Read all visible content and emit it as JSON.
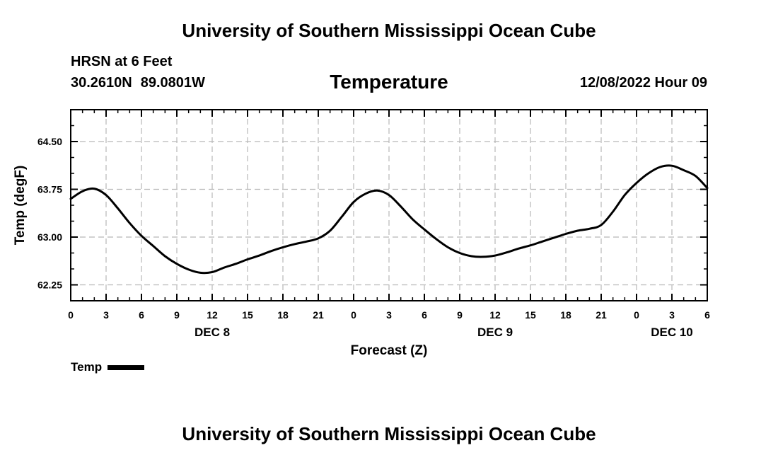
{
  "header": {
    "title": "University of Southern Mississippi Ocean Cube",
    "station": "HRSN at 6 Feet",
    "lat": "30.2610N",
    "lon": "89.0801W",
    "chart_title": "Temperature",
    "timestamp": "12/08/2022 Hour 09"
  },
  "footer": {
    "title": "University of Southern Mississippi Ocean Cube"
  },
  "legend": {
    "label": "Temp",
    "color": "#000000"
  },
  "chart_data": {
    "type": "line",
    "title": "Temperature",
    "xlabel": "Forecast (Z)",
    "ylabel": "Temp (degF)",
    "x_unit": "hours from DEC 8 00Z",
    "xlim": [
      0,
      54
    ],
    "ylim": [
      62.0,
      65.0
    ],
    "y_ticks": [
      62.25,
      63.0,
      63.75,
      64.5
    ],
    "y_tick_labels": [
      "62.25",
      "63.00",
      "63.75",
      "64.50"
    ],
    "x_ticks": [
      0,
      3,
      6,
      9,
      12,
      15,
      18,
      21,
      24,
      27,
      30,
      33,
      36,
      39,
      42,
      45,
      48,
      51,
      54
    ],
    "x_tick_labels": [
      "0",
      "3",
      "6",
      "9",
      "12",
      "15",
      "18",
      "21",
      "0",
      "3",
      "6",
      "9",
      "12",
      "15",
      "18",
      "21",
      "0",
      "3",
      "6"
    ],
    "date_labels": [
      {
        "x": 12,
        "label": "DEC 8"
      },
      {
        "x": 36,
        "label": "DEC 9"
      },
      {
        "x": 51,
        "label": "DEC 10"
      }
    ],
    "grid": true,
    "series": [
      {
        "name": "Temp",
        "color": "#000000",
        "x": [
          0,
          1,
          2,
          3,
          4,
          5,
          6,
          7,
          8,
          9,
          10,
          11,
          12,
          13,
          14,
          15,
          16,
          17,
          18,
          19,
          20,
          21,
          22,
          23,
          24,
          25,
          26,
          27,
          28,
          29,
          30,
          31,
          32,
          33,
          34,
          35,
          36,
          37,
          38,
          39,
          40,
          41,
          42,
          43,
          44,
          45,
          46,
          47,
          48,
          49,
          50,
          51,
          52,
          53,
          54
        ],
        "values": [
          63.6,
          63.72,
          63.76,
          63.66,
          63.45,
          63.22,
          63.02,
          62.86,
          62.7,
          62.58,
          62.49,
          62.44,
          62.45,
          62.52,
          62.58,
          62.65,
          62.71,
          62.78,
          62.84,
          62.89,
          62.93,
          62.98,
          63.1,
          63.32,
          63.55,
          63.68,
          63.73,
          63.66,
          63.48,
          63.28,
          63.12,
          62.97,
          62.84,
          62.75,
          62.7,
          62.69,
          62.71,
          62.76,
          62.82,
          62.87,
          62.93,
          62.99,
          63.05,
          63.1,
          63.13,
          63.19,
          63.4,
          63.66,
          63.85,
          64.0,
          64.1,
          64.12,
          64.05,
          63.96,
          63.77
        ]
      }
    ]
  }
}
